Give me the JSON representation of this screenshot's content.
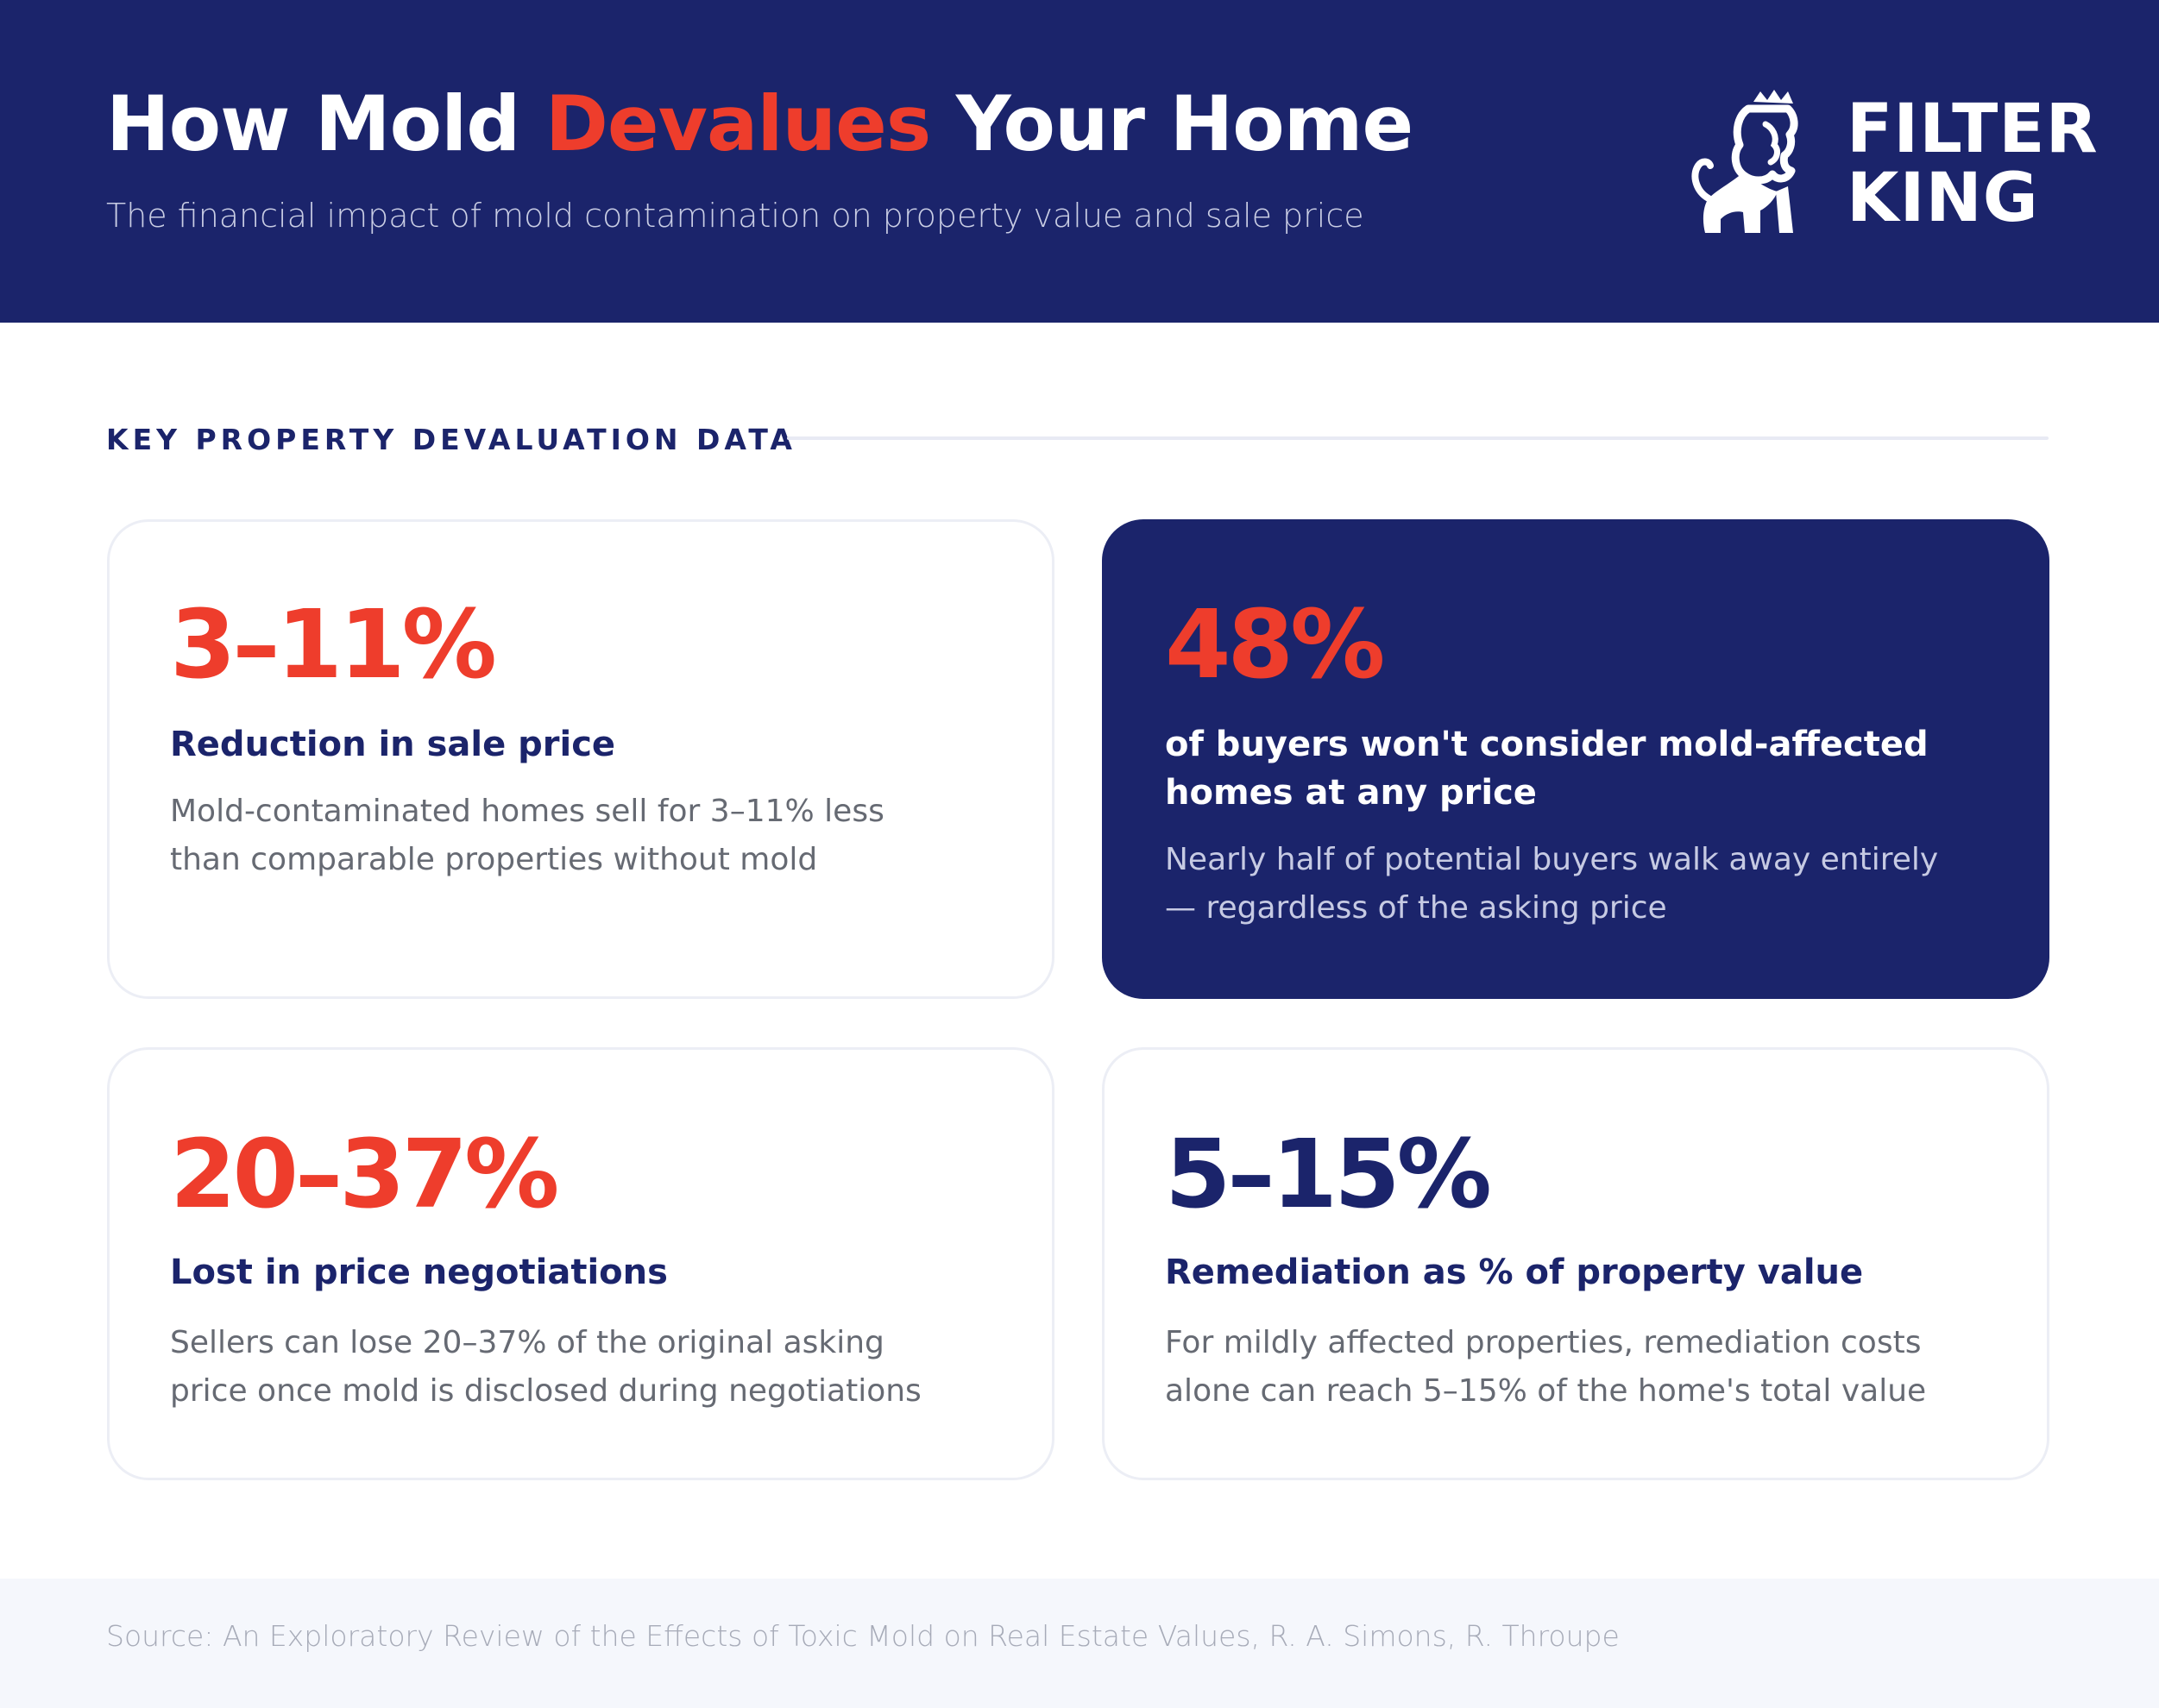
{
  "header": {
    "title_part1": "How Mold ",
    "title_accent": "Devalues",
    "title_part2": " Your Home",
    "subtitle": "The financial impact of mold contamination on property value and sale price"
  },
  "logo": {
    "line1": "FILTER",
    "line2": "KING",
    "icon": "crowned-lion-icon"
  },
  "section": {
    "label": "KEY PROPERTY DEVALUATION DATA"
  },
  "cards": [
    {
      "stat": "3–11%",
      "heading": "Reduction in sale price",
      "desc_line1": "Mold-contaminated homes sell for 3–11% less",
      "desc_line2": "than comparable properties without mold"
    },
    {
      "stat": "48%",
      "heading_line1": "of buyers won't consider mold-affected",
      "heading_line2": "homes at any price",
      "desc_line1": "Nearly half of potential buyers walk away entirely",
      "desc_line2": "— regardless of the asking price"
    },
    {
      "stat": "20–37%",
      "heading": "Lost in price negotiations",
      "desc_line1": "Sellers can lose 20–37% of the original asking",
      "desc_line2": "price once mold is disclosed during negotiations"
    },
    {
      "stat": "5–15%",
      "heading": "Remediation as % of property value",
      "desc_line1": "For mildly affected properties, remediation costs",
      "desc_line2": "alone can reach 5–15% of the home's total value"
    }
  ],
  "footer": {
    "source": "Source: An Exploratory Review of the Effects of Toxic Mold on Real Estate Values, R. A. Simons, R. Throupe"
  },
  "colors": {
    "navy": "#1b246b",
    "accent_red": "#ee3d2c",
    "body_gray": "#666a73"
  }
}
